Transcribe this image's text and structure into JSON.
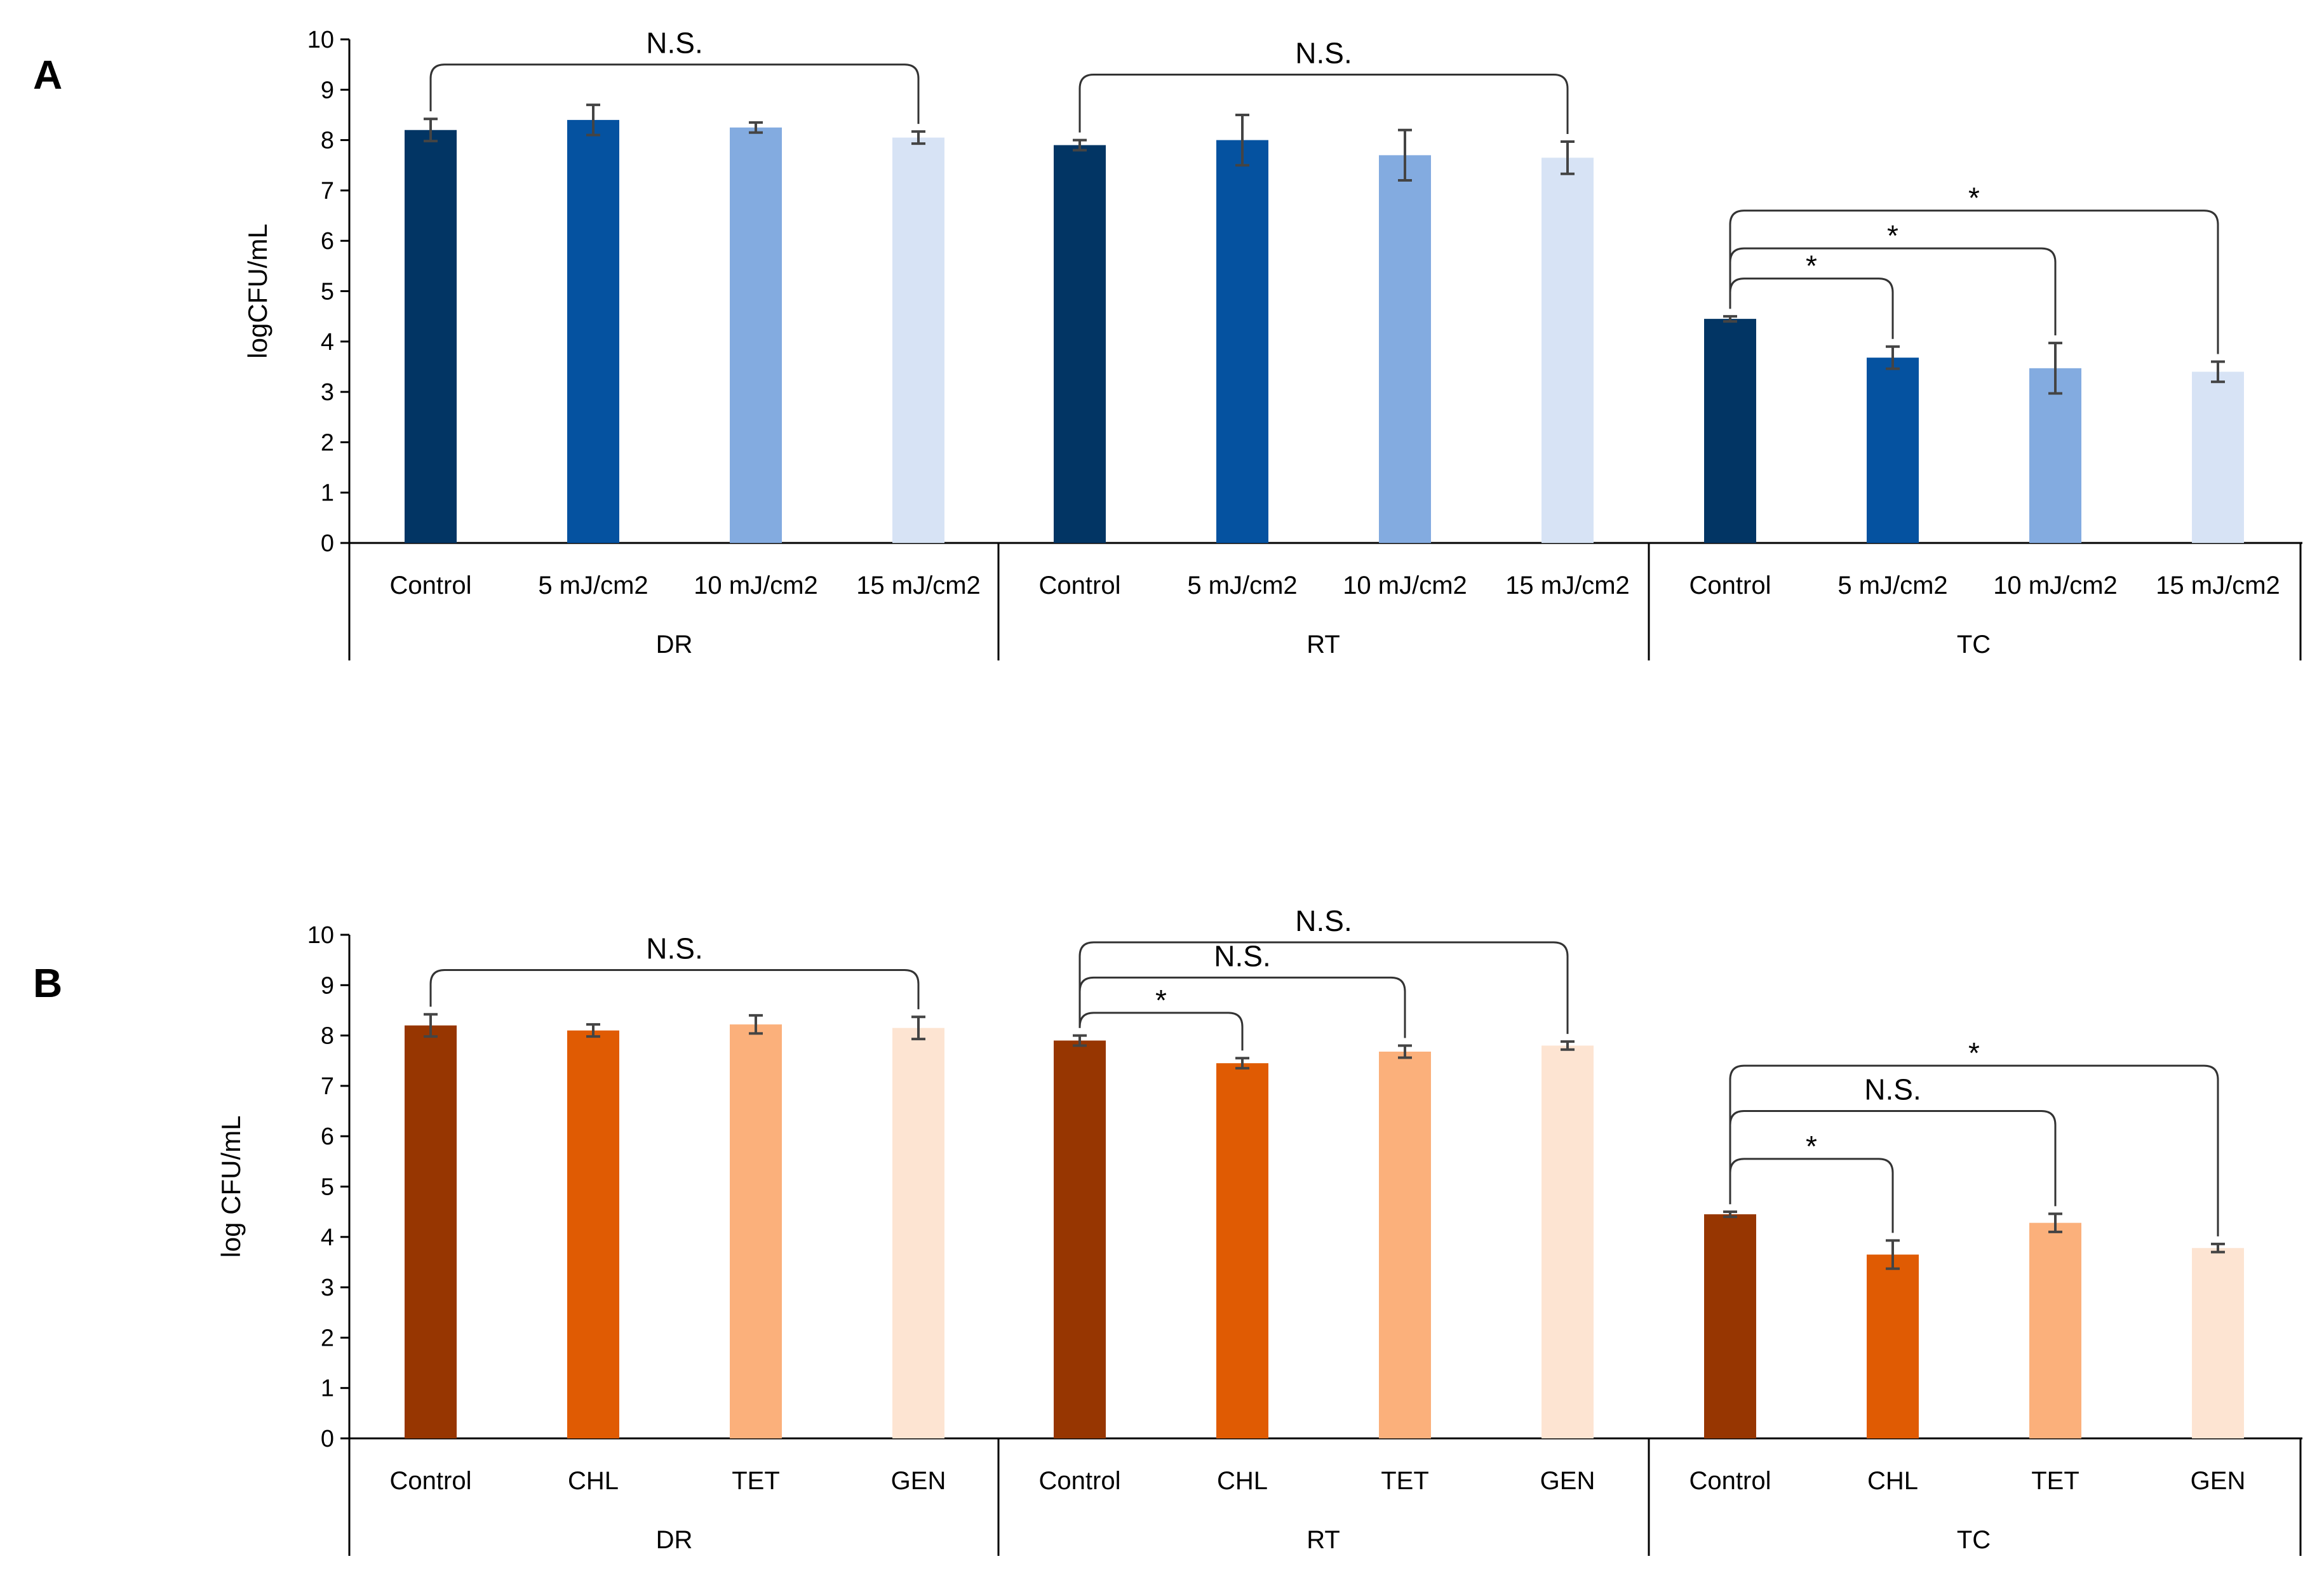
{
  "chart_data": [
    {
      "panel": "A",
      "type": "bar",
      "ylabel": "logCFU/mL",
      "ylim": [
        0,
        10
      ],
      "yticks": [
        "0",
        "1",
        "2",
        "3",
        "4",
        "5",
        "6",
        "7",
        "8",
        "9",
        "10"
      ],
      "groups": [
        "DR",
        "RT",
        "TC"
      ],
      "categories": [
        "Control",
        "5 mJ/cm2",
        "10 mJ/cm2",
        "15 mJ/cm2"
      ],
      "colors": [
        "#023564",
        "#0552a0",
        "#83abe0",
        "#d7e3f5"
      ],
      "values": [
        [
          8.2,
          8.4,
          8.25,
          8.05
        ],
        [
          7.9,
          8.0,
          7.7,
          7.65
        ],
        [
          4.45,
          3.68,
          3.47,
          3.4
        ]
      ],
      "errors": [
        [
          0.22,
          0.3,
          0.1,
          0.12
        ],
        [
          0.1,
          0.5,
          0.5,
          0.32
        ],
        [
          0.05,
          0.22,
          0.5,
          0.2
        ]
      ],
      "annotations": [
        {
          "group": 0,
          "from": 0,
          "to": 3,
          "label": "N.S.",
          "level": 9.5
        },
        {
          "group": 1,
          "from": 0,
          "to": 3,
          "label": "N.S.",
          "level": 9.3
        },
        {
          "group": 2,
          "from": 0,
          "to": 1,
          "label": "*",
          "level": 5.25
        },
        {
          "group": 2,
          "from": 0,
          "to": 2,
          "label": "*",
          "level": 5.85
        },
        {
          "group": 2,
          "from": 0,
          "to": 3,
          "label": "*",
          "level": 6.6
        }
      ]
    },
    {
      "panel": "B",
      "type": "bar",
      "ylabel": "log CFU/mL",
      "ylim": [
        0,
        10
      ],
      "yticks": [
        "0",
        "1",
        "2",
        "3",
        "4",
        "5",
        "6",
        "7",
        "8",
        "9",
        "10"
      ],
      "groups": [
        "DR",
        "RT",
        "TC"
      ],
      "categories": [
        "Control",
        "CHL",
        "TET",
        "GEN"
      ],
      "colors": [
        "#973601",
        "#e05b03",
        "#fbb07b",
        "#fde4d2"
      ],
      "values": [
        [
          8.2,
          8.1,
          8.22,
          8.15
        ],
        [
          7.9,
          7.45,
          7.68,
          7.8
        ],
        [
          4.45,
          3.65,
          4.28,
          3.78
        ]
      ],
      "errors": [
        [
          0.22,
          0.12,
          0.18,
          0.22
        ],
        [
          0.1,
          0.1,
          0.12,
          0.08
        ],
        [
          0.05,
          0.28,
          0.18,
          0.08
        ]
      ],
      "annotations": [
        {
          "group": 0,
          "from": 0,
          "to": 3,
          "label": "N.S.",
          "level": 9.3
        },
        {
          "group": 1,
          "from": 0,
          "to": 1,
          "label": "*",
          "level": 8.45
        },
        {
          "group": 1,
          "from": 0,
          "to": 2,
          "label": "N.S.",
          "level": 9.15
        },
        {
          "group": 1,
          "from": 0,
          "to": 3,
          "label": "N.S.",
          "level": 9.85
        },
        {
          "group": 2,
          "from": 0,
          "to": 1,
          "label": "*",
          "level": 5.55
        },
        {
          "group": 2,
          "from": 0,
          "to": 2,
          "label": "N.S.",
          "level": 6.5
        },
        {
          "group": 2,
          "from": 0,
          "to": 3,
          "label": "*",
          "level": 7.4
        }
      ]
    }
  ]
}
